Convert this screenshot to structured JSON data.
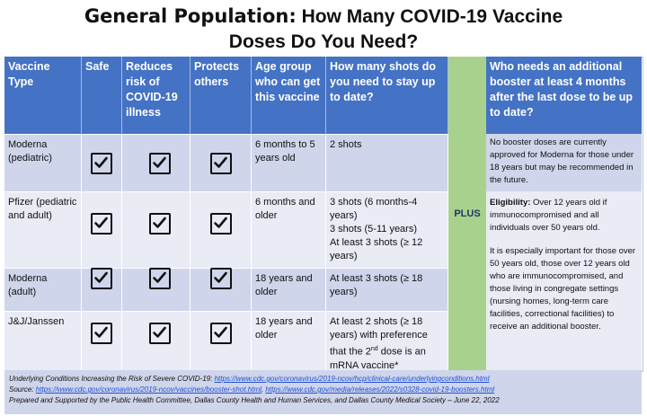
{
  "title": {
    "lead": "General Population:",
    "rest": " How Many COVID-19 Vaccine",
    "line2": "Doses Do You Need?"
  },
  "headers": {
    "type": "Vaccine Type",
    "safe": "Safe",
    "reduces": "Reduces risk of COVID-19 illness",
    "protects": "Protects others",
    "age": "Age group who can get this vaccine",
    "shots": "How many shots do you need to stay up to date?",
    "booster": "Who needs an additional booster at least 4 months after the last dose to be up to date?"
  },
  "plus": "PLUS",
  "rows": [
    {
      "vaccine": "Moderna (pediatric)",
      "age": "6 months to 5 years old",
      "shots": [
        "2 shots"
      ]
    },
    {
      "vaccine": "Pfizer (pediatric and adult)",
      "age": "6 months and older",
      "shots": [
        "3 shots (6 months-4 years)",
        "3 shots (5-11 years)",
        "At least 3 shots (≥ 12 years)"
      ]
    },
    {
      "vaccine": "Moderna (adult)",
      "age": "18 years and older",
      "shots": [
        "At least 3 shots (≥ 18 years)"
      ]
    },
    {
      "vaccine": "J&J/Janssen",
      "age": "18 years and older",
      "shots_a": "At least 2 shots (≥ 18 years) with preference that the 2",
      "shots_sup": "nd",
      "shots_b": " dose is an mRNA vaccine*"
    }
  ],
  "booster_top": "No booster doses are currently approved for Moderna for those under 18 years but may be recommended in the future.",
  "booster_elig_label": "Eligibility:",
  "booster_elig_text": " Over 12 years old if immunocompromised and all individuals over 50 years old.",
  "booster_important": "It is especially important for those over 50 years old, those over 12 years old who are immunocompromised, and those living in congregate settings (nursing homes, long-term care facilities, correctional facilities) to receive an additional booster.",
  "footer": {
    "line1_label": "Underlying Conditions Increasing the Risk of Severe COVID-19: ",
    "line1_link": "https://www.cdc.gov/coronavirus/2019-ncov/hcp/clinical-care/underlyingconditions.html",
    "line2_label": "Source: ",
    "line2_link1": "https://www.cdc.gov/coronavirus/2019-ncov/vaccines/booster-shot.html",
    "line2_sep": ", ",
    "line2_link2": "https://www.cdc.gov/media/releases/2022/s0328-covid-19-boosters.html",
    "line3": "Prepared and Supported by the Public Health Committee, Dallas County Health and Human Services, and Dallas County Medical Society – June 22, 2022"
  }
}
